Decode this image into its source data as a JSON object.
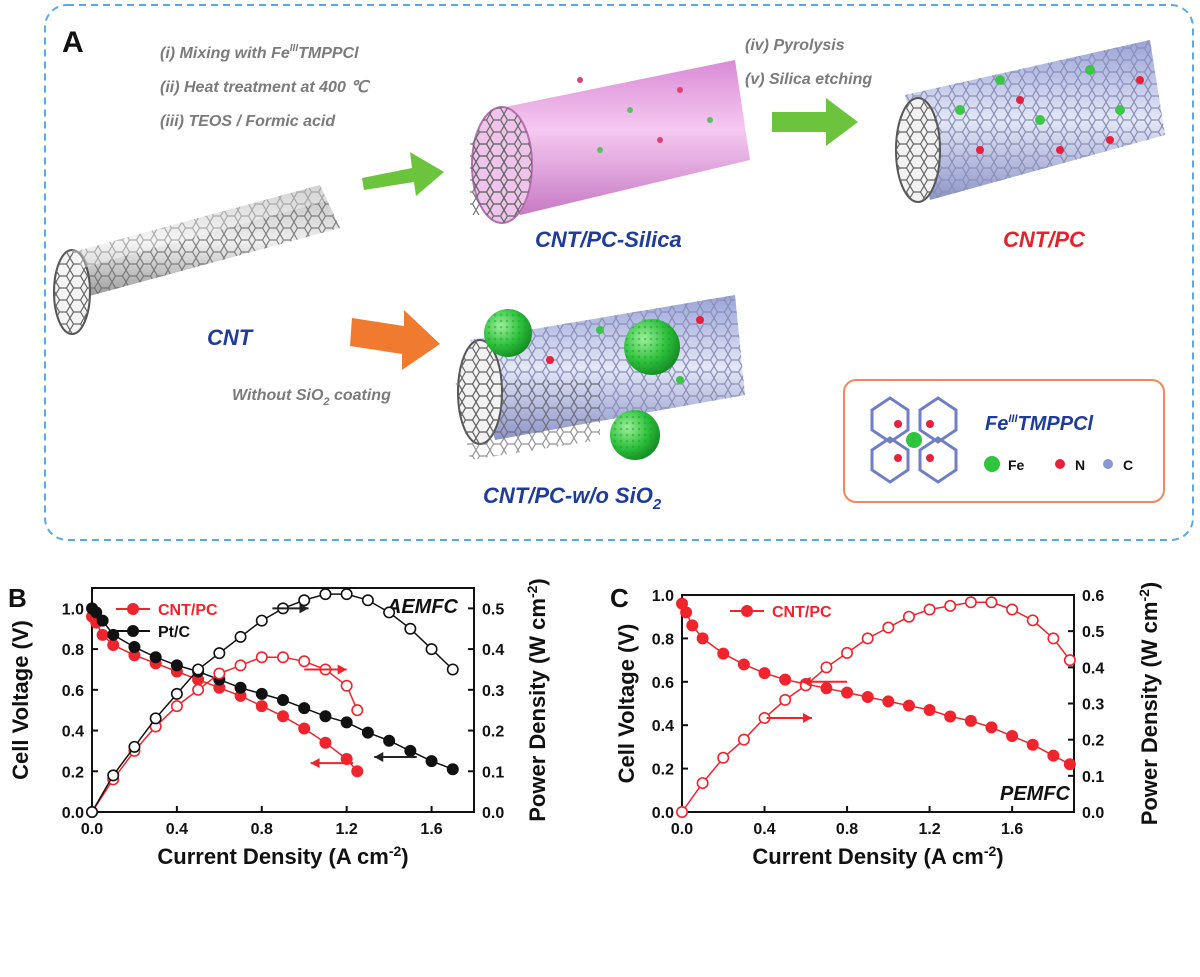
{
  "panel_a": {
    "label": "A",
    "steps_1": [
      "(i) Mixing with Fe",
      "III",
      "TMPPCl",
      "(ii) Heat treatment at 400 ℃",
      "(iii) TEOS / Formic acid"
    ],
    "steps_2": [
      "(iv) Pyrolysis",
      "(v) Silica etching"
    ],
    "cnt_label": "CNT",
    "silica_label": "CNT/PC-Silica",
    "product_label": "CNT/PC",
    "without_label": "Without SiO",
    "without_sub": "2",
    "without_tail": " coating",
    "wo_label": "CNT/PC-w/o SiO",
    "wo_sub": "2",
    "legend_title": "Fe",
    "legend_sup": "III",
    "legend_title_tail": "TMPPCl",
    "legend_fe": "Fe",
    "legend_n": "N",
    "legend_c": "C",
    "colors": {
      "green_arrow": "#6cc43c",
      "orange_arrow": "#f07a30",
      "blue_label": "#1f3c9c",
      "red_label": "#e8202a",
      "box_border": "#f08a5a",
      "dash": "#5aa9e6"
    }
  },
  "chart_data": [
    {
      "panel": "B",
      "type": "line",
      "annotation": "AEMFC",
      "xlabel": "Current Density (A cm-2)",
      "ylabel": "Cell Voltage (V)",
      "y2label": "Power Density (W cm-2)",
      "xlim": [
        0,
        1.8
      ],
      "ylim": [
        0,
        1.1
      ],
      "y2lim": [
        0,
        0.55
      ],
      "xticks": [
        "0.0",
        "0.4",
        "0.8",
        "1.2",
        "1.6"
      ],
      "yticks": [
        "0.0",
        "0.2",
        "0.4",
        "0.6",
        "0.8",
        "1.0"
      ],
      "y2ticks": [
        "0.0",
        "0.1",
        "0.2",
        "0.3",
        "0.4",
        "0.5"
      ],
      "legend": [
        {
          "name": "CNT/PC",
          "color": "#f0242c"
        },
        {
          "name": "Pt/C",
          "color": "#111111"
        }
      ],
      "series": [
        {
          "name": "CNT/PC",
          "kind": "voltage",
          "color": "#f0242c",
          "points": [
            [
              0.0,
              0.96
            ],
            [
              0.02,
              0.93
            ],
            [
              0.05,
              0.87
            ],
            [
              0.1,
              0.82
            ],
            [
              0.2,
              0.77
            ],
            [
              0.3,
              0.73
            ],
            [
              0.4,
              0.69
            ],
            [
              0.5,
              0.65
            ],
            [
              0.6,
              0.61
            ],
            [
              0.7,
              0.57
            ],
            [
              0.8,
              0.52
            ],
            [
              0.9,
              0.47
            ],
            [
              1.0,
              0.41
            ],
            [
              1.1,
              0.34
            ],
            [
              1.2,
              0.26
            ],
            [
              1.25,
              0.2
            ]
          ]
        },
        {
          "name": "Pt/C",
          "kind": "voltage",
          "color": "#111111",
          "points": [
            [
              0.0,
              1.0
            ],
            [
              0.02,
              0.98
            ],
            [
              0.05,
              0.94
            ],
            [
              0.1,
              0.87
            ],
            [
              0.2,
              0.81
            ],
            [
              0.3,
              0.76
            ],
            [
              0.4,
              0.72
            ],
            [
              0.5,
              0.69
            ],
            [
              0.6,
              0.65
            ],
            [
              0.7,
              0.61
            ],
            [
              0.8,
              0.58
            ],
            [
              0.9,
              0.55
            ],
            [
              1.0,
              0.51
            ],
            [
              1.1,
              0.47
            ],
            [
              1.2,
              0.44
            ],
            [
              1.3,
              0.39
            ],
            [
              1.4,
              0.35
            ],
            [
              1.5,
              0.3
            ],
            [
              1.6,
              0.25
            ],
            [
              1.7,
              0.21
            ]
          ]
        },
        {
          "name": "CNT/PC",
          "kind": "power",
          "color": "#f0242c",
          "points": [
            [
              0.0,
              0.0
            ],
            [
              0.1,
              0.08
            ],
            [
              0.2,
              0.15
            ],
            [
              0.3,
              0.21
            ],
            [
              0.4,
              0.26
            ],
            [
              0.5,
              0.3
            ],
            [
              0.6,
              0.34
            ],
            [
              0.7,
              0.36
            ],
            [
              0.8,
              0.38
            ],
            [
              0.9,
              0.38
            ],
            [
              1.0,
              0.37
            ],
            [
              1.1,
              0.35
            ],
            [
              1.2,
              0.31
            ],
            [
              1.25,
              0.25
            ]
          ]
        },
        {
          "name": "Pt/C",
          "kind": "power",
          "color": "#111111",
          "points": [
            [
              0.0,
              0.0
            ],
            [
              0.1,
              0.09
            ],
            [
              0.2,
              0.16
            ],
            [
              0.3,
              0.23
            ],
            [
              0.4,
              0.29
            ],
            [
              0.5,
              0.35
            ],
            [
              0.6,
              0.39
            ],
            [
              0.7,
              0.43
            ],
            [
              0.8,
              0.47
            ],
            [
              0.9,
              0.5
            ],
            [
              1.0,
              0.52
            ],
            [
              1.1,
              0.535
            ],
            [
              1.2,
              0.535
            ],
            [
              1.3,
              0.52
            ],
            [
              1.4,
              0.49
            ],
            [
              1.5,
              0.45
            ],
            [
              1.6,
              0.4
            ],
            [
              1.7,
              0.35
            ]
          ]
        }
      ]
    },
    {
      "panel": "C",
      "type": "line",
      "annotation": "PEMFC",
      "xlabel": "Current Density (A cm-2)",
      "ylabel": "Cell Voltage (V)",
      "y2label": "Power Density (W cm-2)",
      "xlim": [
        0,
        1.9
      ],
      "ylim": [
        0,
        1.0
      ],
      "y2lim": [
        0,
        0.6
      ],
      "xticks": [
        "0.0",
        "0.4",
        "0.8",
        "1.2",
        "1.6"
      ],
      "yticks": [
        "0.0",
        "0.2",
        "0.4",
        "0.6",
        "0.8",
        "1.0"
      ],
      "y2ticks": [
        "0.0",
        "0.1",
        "0.2",
        "0.3",
        "0.4",
        "0.5",
        "0.6"
      ],
      "legend": [
        {
          "name": "CNT/PC",
          "color": "#f0242c"
        }
      ],
      "series": [
        {
          "name": "CNT/PC",
          "kind": "voltage",
          "color": "#f0242c",
          "points": [
            [
              0.0,
              0.96
            ],
            [
              0.02,
              0.92
            ],
            [
              0.05,
              0.86
            ],
            [
              0.1,
              0.8
            ],
            [
              0.2,
              0.73
            ],
            [
              0.3,
              0.68
            ],
            [
              0.4,
              0.64
            ],
            [
              0.5,
              0.61
            ],
            [
              0.6,
              0.59
            ],
            [
              0.7,
              0.57
            ],
            [
              0.8,
              0.55
            ],
            [
              0.9,
              0.53
            ],
            [
              1.0,
              0.51
            ],
            [
              1.1,
              0.49
            ],
            [
              1.2,
              0.47
            ],
            [
              1.3,
              0.44
            ],
            [
              1.4,
              0.42
            ],
            [
              1.5,
              0.39
            ],
            [
              1.6,
              0.35
            ],
            [
              1.7,
              0.31
            ],
            [
              1.8,
              0.26
            ],
            [
              1.88,
              0.22
            ]
          ]
        },
        {
          "name": "CNT/PC",
          "kind": "power",
          "color": "#f0242c",
          "points": [
            [
              0.0,
              0.0
            ],
            [
              0.1,
              0.08
            ],
            [
              0.2,
              0.15
            ],
            [
              0.3,
              0.2
            ],
            [
              0.4,
              0.26
            ],
            [
              0.5,
              0.31
            ],
            [
              0.6,
              0.35
            ],
            [
              0.7,
              0.4
            ],
            [
              0.8,
              0.44
            ],
            [
              0.9,
              0.48
            ],
            [
              1.0,
              0.51
            ],
            [
              1.1,
              0.54
            ],
            [
              1.2,
              0.56
            ],
            [
              1.3,
              0.57
            ],
            [
              1.4,
              0.58
            ],
            [
              1.5,
              0.58
            ],
            [
              1.6,
              0.56
            ],
            [
              1.7,
              0.53
            ],
            [
              1.8,
              0.48
            ],
            [
              1.88,
              0.42
            ]
          ]
        }
      ]
    }
  ]
}
